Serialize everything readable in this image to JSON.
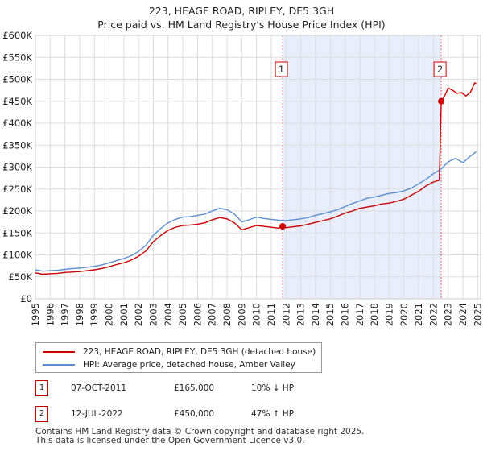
{
  "title": {
    "line1": "223, HEAGE ROAD, RIPLEY, DE5 3GH",
    "line2": "Price paid vs. HM Land Registry's House Price Index (HPI)"
  },
  "legend": {
    "property_label": "223, HEAGE ROAD, RIPLEY, DE5 3GH (detached house)",
    "hpi_label": "HPI: Average price, detached house, Amber Valley"
  },
  "sales": [
    {
      "marker": "1",
      "date": "07-OCT-2011",
      "price": "£165,000",
      "hpi_change": "10% ↓ HPI",
      "x": 2011.77,
      "y": 165000
    },
    {
      "marker": "2",
      "date": "12-JUL-2022",
      "price": "£450,000",
      "hpi_change": "47% ↑ HPI",
      "x": 2022.53,
      "y": 450000
    }
  ],
  "footer": {
    "line1": "Contains HM Land Registry data © Crown copyright and database right 2025.",
    "line2": "This data is licensed under the Open Government Licence v3.0."
  },
  "colors": {
    "property": "#cc0000",
    "hpi": "#5b8fd0",
    "shade": "#e8eefb",
    "grid": "#dddddd",
    "vline": "#e06666"
  },
  "chart_data": {
    "type": "line",
    "title": "223, HEAGE ROAD, RIPLEY, DE5 3GH — Price paid vs. HM Land Registry's House Price Index (HPI)",
    "xlabel": "",
    "ylabel": "",
    "xlim": [
      1995,
      2025.2
    ],
    "ylim": [
      0,
      600000
    ],
    "grid": true,
    "legend_position": "bottom-left",
    "x_ticks": [
      1995,
      1996,
      1997,
      1998,
      1999,
      2000,
      2001,
      2002,
      2003,
      2004,
      2005,
      2006,
      2007,
      2008,
      2009,
      2010,
      2011,
      2012,
      2013,
      2014,
      2015,
      2016,
      2017,
      2018,
      2019,
      2020,
      2021,
      2022,
      2023,
      2024,
      2025
    ],
    "x_tick_labels": [
      "1995",
      "1996",
      "1997",
      "1998",
      "1999",
      "2000",
      "2001",
      "2002",
      "2003",
      "2004",
      "2005",
      "2006",
      "2007",
      "2008",
      "2009",
      "2010",
      "2011",
      "2012",
      "2013",
      "2014",
      "2015",
      "2016",
      "2017",
      "2018",
      "2019",
      "2020",
      "2021",
      "2022",
      "2023",
      "2024",
      "2025"
    ],
    "y_ticks": [
      0,
      50000,
      100000,
      150000,
      200000,
      250000,
      300000,
      350000,
      400000,
      450000,
      500000,
      550000,
      600000
    ],
    "y_tick_labels": [
      "£0",
      "£50K",
      "£100K",
      "£150K",
      "£200K",
      "£250K",
      "£300K",
      "£350K",
      "£400K",
      "£450K",
      "£500K",
      "£550K",
      "£600K"
    ],
    "shaded_region": [
      2011.77,
      2022.53
    ],
    "series": [
      {
        "name": "HPI: Average price, detached house, Amber Valley",
        "x": [
          1995,
          1995.5,
          1996,
          1996.5,
          1997,
          1997.5,
          1998,
          1998.5,
          1999,
          1999.5,
          2000,
          2000.5,
          2001,
          2001.5,
          2002,
          2002.5,
          2003,
          2003.5,
          2004,
          2004.5,
          2005,
          2005.5,
          2006,
          2006.5,
          2007,
          2007.5,
          2008,
          2008.5,
          2009,
          2009.5,
          2010,
          2010.5,
          2011,
          2011.5,
          2012,
          2012.5,
          2013,
          2013.5,
          2014,
          2014.5,
          2015,
          2015.5,
          2016,
          2016.5,
          2017,
          2017.5,
          2018,
          2018.5,
          2019,
          2019.5,
          2020,
          2020.5,
          2021,
          2021.5,
          2022,
          2022.5,
          2023,
          2023.5,
          2024,
          2024.5,
          2024.9
        ],
        "values": [
          66000,
          63000,
          64000,
          65000,
          67000,
          69000,
          70000,
          72000,
          74000,
          77000,
          82000,
          87000,
          92000,
          98000,
          108000,
          122000,
          145000,
          160000,
          173000,
          181000,
          186000,
          187000,
          190000,
          193000,
          200000,
          206000,
          203000,
          193000,
          175000,
          180000,
          186000,
          183000,
          181000,
          179000,
          178000,
          180000,
          182000,
          185000,
          190000,
          194000,
          198000,
          203000,
          210000,
          217000,
          223000,
          229000,
          232000,
          236000,
          240000,
          242000,
          246000,
          252000,
          262000,
          272000,
          285000,
          295000,
          312000,
          320000,
          310000,
          325000,
          335000
        ]
      },
      {
        "name": "223, HEAGE ROAD, RIPLEY, DE5 3GH (detached house)",
        "x": [
          1995,
          1995.5,
          1996,
          1996.5,
          1997,
          1997.5,
          1998,
          1998.5,
          1999,
          1999.5,
          2000,
          2000.5,
          2001,
          2001.5,
          2002,
          2002.5,
          2003,
          2003.5,
          2004,
          2004.5,
          2005,
          2005.5,
          2006,
          2006.5,
          2007,
          2007.5,
          2008,
          2008.5,
          2009,
          2009.5,
          2010,
          2010.5,
          2011,
          2011.5,
          2011.77,
          2012,
          2012.5,
          2013,
          2013.5,
          2014,
          2014.5,
          2015,
          2015.5,
          2016,
          2016.5,
          2017,
          2017.5,
          2018,
          2018.5,
          2019,
          2019.5,
          2020,
          2020.5,
          2021,
          2021.5,
          2022,
          2022.4,
          2022.53,
          2022.8,
          2023,
          2023.3,
          2023.6,
          2023.9,
          2024.2,
          2024.5,
          2024.8,
          2024.9
        ],
        "values": [
          59000,
          56000,
          57000,
          58000,
          60000,
          61000,
          62000,
          64000,
          66000,
          69000,
          73000,
          78000,
          82000,
          88000,
          97000,
          109000,
          130000,
          144000,
          156000,
          163000,
          167000,
          168000,
          170000,
          173000,
          180000,
          185000,
          182000,
          173000,
          157000,
          162000,
          167000,
          165000,
          163000,
          161000,
          165000,
          162000,
          164000,
          166000,
          170000,
          174000,
          178000,
          182000,
          188000,
          195000,
          200000,
          206000,
          209000,
          212000,
          216000,
          218000,
          222000,
          227000,
          236000,
          245000,
          257000,
          266000,
          270000,
          450000,
          465000,
          480000,
          475000,
          468000,
          470000,
          462000,
          470000,
          492000,
          490000
        ]
      }
    ]
  }
}
